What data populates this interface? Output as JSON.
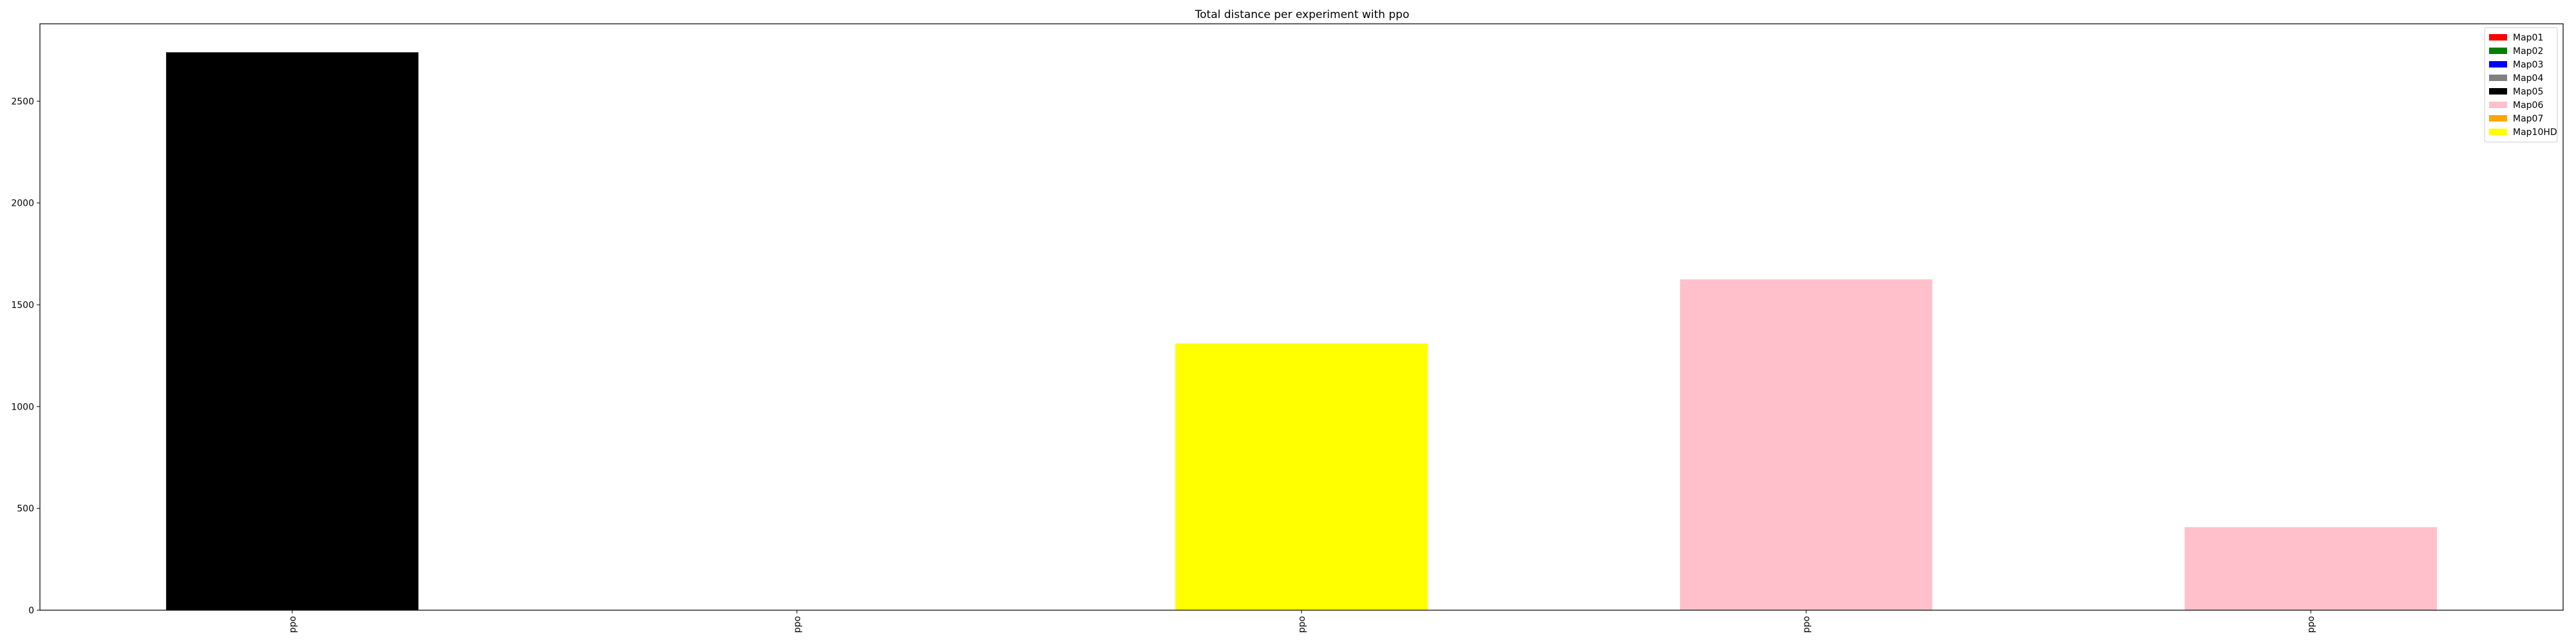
{
  "chart_data": {
    "type": "bar",
    "title": "Total distance per experiment with ppo",
    "xlabel": "",
    "ylabel": "",
    "categories": [
      "ppo",
      "ppo",
      "ppo",
      "ppo",
      "ppo"
    ],
    "values": [
      2740,
      0,
      1310,
      1625,
      408
    ],
    "bar_colors": [
      "#000000",
      "#000000",
      "#ffff00",
      "#ffc0cb",
      "#ffc0cb"
    ],
    "ylim": [
      0,
      2880
    ],
    "yticks": [
      0,
      500,
      1000,
      1500,
      2000,
      2500
    ],
    "ytick_labels": [
      "0",
      "500",
      "1000",
      "1500",
      "2000",
      "2500"
    ],
    "grid": false,
    "legend_placement": "top-right",
    "legend": [
      {
        "label": "Map01",
        "color": "#ff0000"
      },
      {
        "label": "Map02",
        "color": "#008000"
      },
      {
        "label": "Map03",
        "color": "#0000ff"
      },
      {
        "label": "Map04",
        "color": "#808080"
      },
      {
        "label": "Map05",
        "color": "#000000"
      },
      {
        "label": "Map06",
        "color": "#ffc0cb"
      },
      {
        "label": "Map07",
        "color": "#ffa500"
      },
      {
        "label": "Map10HD",
        "color": "#ffff00"
      }
    ]
  }
}
